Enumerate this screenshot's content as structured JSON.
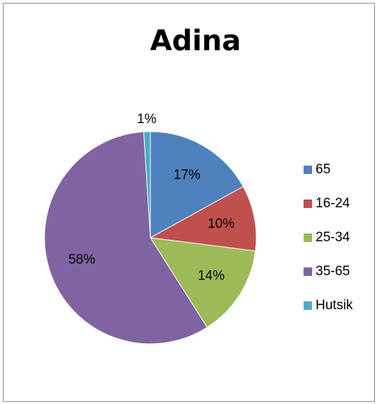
{
  "chart_data": {
    "type": "pie",
    "title": "Adina",
    "categories": [
      "65",
      "16-24",
      "25-34",
      "35-65",
      "Hutsik"
    ],
    "values": [
      17,
      10,
      14,
      58,
      1
    ],
    "value_labels": [
      "17%",
      "10%",
      "14%",
      "58%",
      "1%"
    ],
    "colors": [
      "#4f81bd",
      "#c0504d",
      "#9bbb59",
      "#8064a2",
      "#4bacc6"
    ],
    "legend": "right"
  }
}
